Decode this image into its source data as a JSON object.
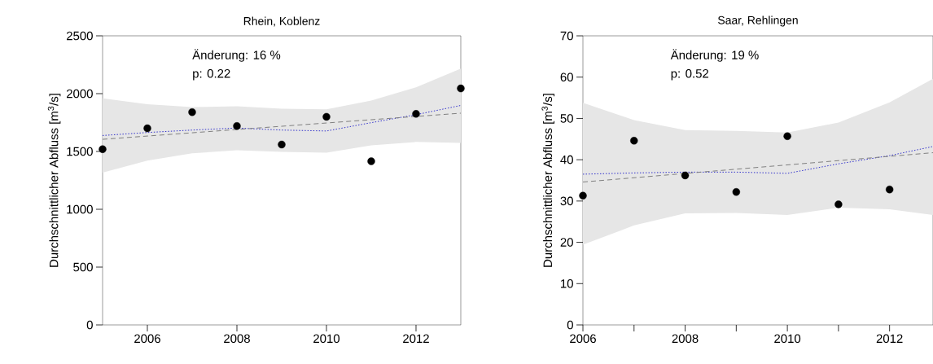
{
  "chart_data": [
    {
      "type": "scatter",
      "title": "Rhein, Koblenz",
      "ylabel": "Durchschnittlicher Abfluss [m$^{3}$/s]",
      "annotations": [
        "Änderung:  16 %",
        "p: 0.22"
      ],
      "xlim": [
        2005,
        2013
      ],
      "xticks": [
        2006,
        2008,
        2010,
        2012
      ],
      "ylim": [
        0,
        2500
      ],
      "yticks": [
        0,
        500,
        1000,
        1500,
        2000,
        2500
      ],
      "grid": false,
      "series": [
        {
          "type": "line",
          "line_style": "dotted",
          "marker": "none",
          "color": "#3333cc",
          "x": [
            2005,
            2006,
            2007,
            2008,
            2009,
            2010,
            2011,
            2012,
            2013
          ],
          "values": [
            1638,
            1664,
            1685,
            1703,
            1685,
            1677,
            1749,
            1818,
            1898
          ],
          "lower": [
            1317,
            1420,
            1484,
            1510,
            1497,
            1489,
            1553,
            1582,
            1574
          ],
          "upper": [
            1960,
            1908,
            1883,
            1890,
            1870,
            1865,
            1940,
            2055,
            2217
          ]
        },
        {
          "type": "line",
          "line_style": "dashed",
          "marker": "none",
          "color": "#808080",
          "x": [
            2005,
            2013
          ],
          "values": [
            1605,
            1831
          ]
        },
        {
          "marker": "circle",
          "color": "#000000",
          "x": [
            2005,
            2006,
            2007,
            2008,
            2009,
            2010,
            2011,
            2012,
            2013
          ],
          "values": [
            1520,
            1700,
            1840,
            1720,
            1560,
            1800,
            1415,
            1825,
            2045
          ]
        }
      ]
    },
    {
      "type": "scatter",
      "title": "Saar, Rehlingen",
      "ylabel": "Durchschnittlicher Abfluss [m$^{3}$/s]",
      "annotations": [
        "Änderung:  19 %",
        "p: 0.52"
      ],
      "xlim": [
        2006,
        2012.85
      ],
      "xticks": [
        2006,
        {
          "value": 2007,
          "label": null
        },
        2008,
        {
          "value": 2009,
          "label": null
        },
        2010,
        {
          "value": 2011,
          "label": null
        },
        2012
      ],
      "ylim": [
        0,
        70
      ],
      "yticks": [
        0,
        10,
        20,
        30,
        40,
        50,
        60,
        70
      ],
      "grid": false,
      "series": [
        {
          "type": "line",
          "line_style": "dotted",
          "marker": "none",
          "color": "#3333cc",
          "x": [
            2006,
            2007,
            2008,
            2009,
            2010,
            2011,
            2012,
            2012.85
          ],
          "values": [
            36.5,
            36.8,
            37.0,
            37.0,
            36.7,
            39.0,
            41.0,
            43.2
          ],
          "lower": [
            19.4,
            24.1,
            27.0,
            27.1,
            26.6,
            28.4,
            28.0,
            26.6
          ],
          "upper": [
            53.8,
            49.6,
            47.2,
            47.0,
            46.6,
            49.0,
            53.9,
            59.6
          ]
        },
        {
          "type": "line",
          "line_style": "dashed",
          "marker": "none",
          "color": "#808080",
          "x": [
            2006,
            2012.85
          ],
          "values": [
            34.6,
            41.7
          ]
        },
        {
          "marker": "circle",
          "color": "#000000",
          "x": [
            2006,
            2007,
            2008,
            2009,
            2010,
            2011,
            2012
          ],
          "values": [
            31.3,
            44.6,
            36.2,
            32.2,
            45.7,
            29.2,
            32.8
          ]
        }
      ]
    }
  ]
}
